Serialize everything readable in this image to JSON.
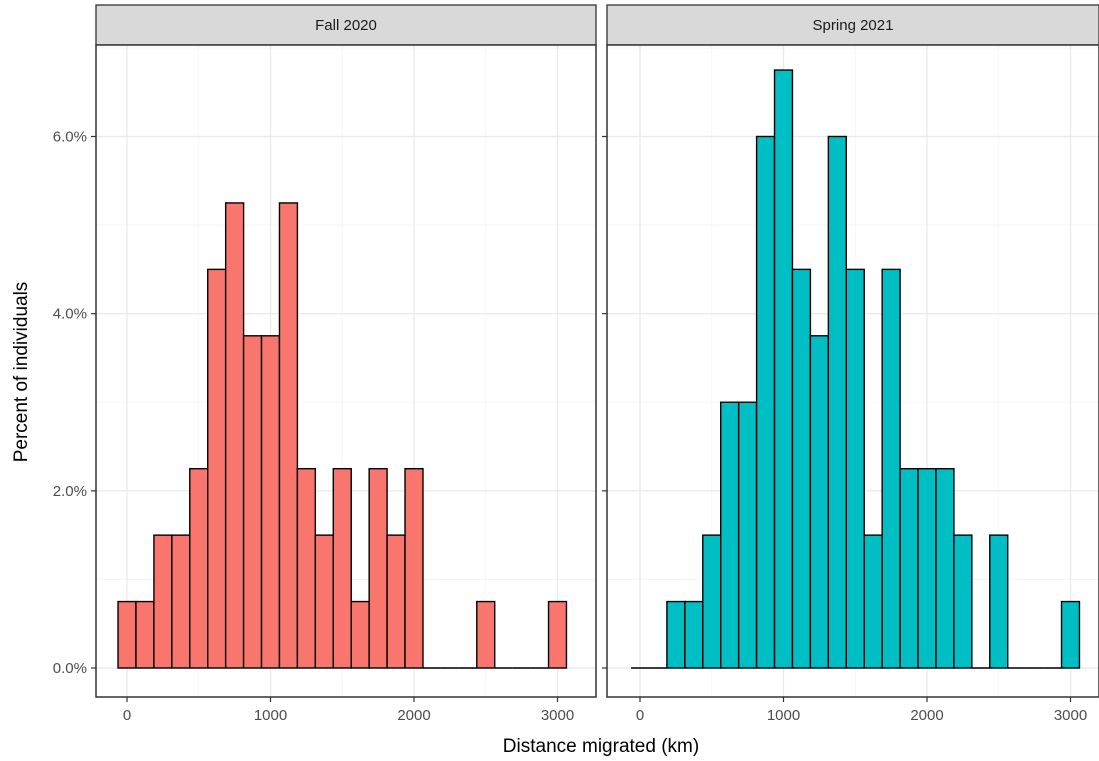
{
  "chart_data": {
    "type": "bar",
    "subtype": "faceted histogram",
    "xlabel": "Distance migrated (km)",
    "ylabel": "Percent of individuals",
    "xlim": [
      -50,
      3150
    ],
    "ylim": [
      -0.0015,
      0.0715
    ],
    "bin_width": 125,
    "x_ticks": [
      0,
      1000,
      2000,
      3000
    ],
    "x_tick_labels": [
      "0",
      "1000",
      "2000",
      "3000"
    ],
    "y_ticks": [
      0,
      0.02,
      0.04,
      0.06
    ],
    "y_tick_labels": [
      "0.0%",
      "2.0%",
      "4.0%",
      "6.0%"
    ],
    "grid": true,
    "legend": "none",
    "facets": [
      {
        "label": "Fall 2020",
        "color": "#F8766D",
        "bin_centers": [
          0,
          125,
          250,
          375,
          500,
          625,
          750,
          875,
          1000,
          1125,
          1250,
          1375,
          1500,
          1625,
          1750,
          1875,
          2000,
          2125,
          2250,
          2375,
          2500,
          2625,
          2750,
          2875,
          3000
        ],
        "values": [
          0.0075,
          0.0075,
          0.015,
          0.015,
          0.0225,
          0.045,
          0.0525,
          0.0375,
          0.0375,
          0.0525,
          0.0225,
          0.015,
          0.0225,
          0.0075,
          0.0225,
          0.015,
          0.0225,
          0,
          0,
          0,
          0.0075,
          0,
          0,
          0,
          0.0075
        ]
      },
      {
        "label": "Spring 2021",
        "color": "#00BFC4",
        "bin_centers": [
          0,
          125,
          250,
          375,
          500,
          625,
          750,
          875,
          1000,
          1125,
          1250,
          1375,
          1500,
          1625,
          1750,
          1875,
          2000,
          2125,
          2250,
          2375,
          2500,
          2625,
          2750,
          2875,
          3000
        ],
        "values": [
          0,
          0,
          0.0075,
          0.0075,
          0.015,
          0.03,
          0.03,
          0.06,
          0.0675,
          0.045,
          0.0375,
          0.06,
          0.045,
          0.015,
          0.045,
          0.0225,
          0.0225,
          0.0225,
          0.015,
          0,
          0.015,
          0,
          0,
          0,
          0.0075
        ]
      }
    ]
  }
}
